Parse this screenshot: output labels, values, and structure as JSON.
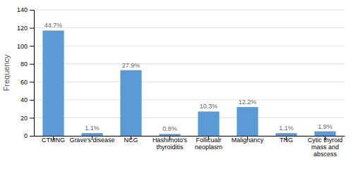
{
  "chart_data": {
    "type": "bar",
    "categories": [
      "CTMNG",
      "Grave's disease",
      "NCG",
      "Hashimoto's\nthyroiditis",
      "Follicualr\nneoplasm",
      "Malignancy",
      "TNG",
      "Cytic thyroid\nmass and\nabscess"
    ],
    "values": [
      117,
      3,
      73,
      2,
      27,
      32,
      3,
      5
    ],
    "percentages": [
      "44.7%",
      "1.1%",
      "27.9%",
      "0.8%",
      "10.3%",
      "12.2%",
      "1.1%",
      "1.9%"
    ],
    "color": "#5B9BD5",
    "y_label": "Frequency",
    "ylim": [
      0,
      140
    ],
    "yticks": [
      0,
      20,
      40,
      60,
      80,
      100,
      120,
      140
    ],
    "grid": true
  }
}
